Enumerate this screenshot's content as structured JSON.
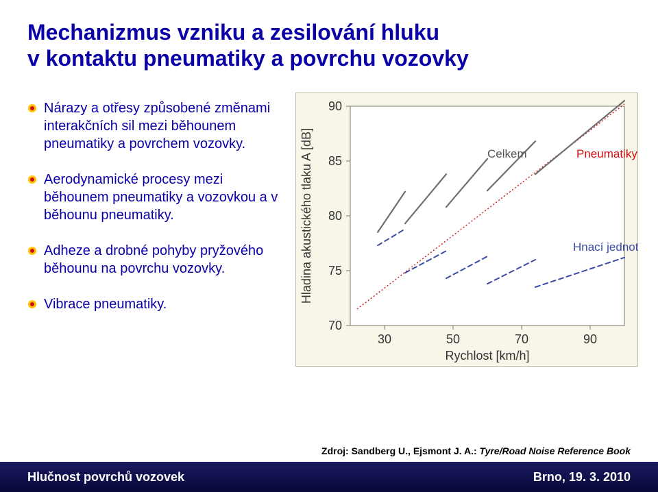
{
  "title_line1": "Mechanizmus vzniku a zesilování hluku",
  "title_line2": "v kontaktu pneumatiky a povrchu vozovky",
  "bullets": [
    "Nárazy a otřesy způsobené změnami interakčních sil  mezi běhounem pneumatiky a povrchem vozovky.",
    "Aerodynamické procesy mezi běhounem pneumatiky a vozovkou a v běhounu pneumatiky.",
    "Adheze a drobné pohyby pryžového běhounu na povrchu vozovky.",
    "Vibrace pneumatiky."
  ],
  "bullet_dot_outer": "#ffc400",
  "bullet_dot_inner": "#d01010",
  "chart": {
    "type": "line",
    "bg_color": "#f7f6e8",
    "plot_bg": "#ffffff",
    "border_color": "#7a7865",
    "y_label": "Hladina akustického tlaku A [dB]",
    "x_label": "Rychlost [km/h]",
    "y_ticks": [
      70,
      75,
      80,
      85,
      90
    ],
    "x_ticks": [
      30,
      50,
      70,
      90
    ],
    "ylim": [
      70,
      90
    ],
    "xlim": [
      20,
      100
    ],
    "tick_fontsize": 18,
    "label_fontsize": 18,
    "series": {
      "celkem": {
        "label": "Celkem",
        "color": "#6f6f6f",
        "width": 2.2,
        "dash": "none",
        "segments": [
          [
            [
              28,
              78.5
            ],
            [
              36,
              82.2
            ]
          ],
          [
            [
              36,
              79.3
            ],
            [
              48,
              83.8
            ]
          ],
          [
            [
              48,
              80.8
            ],
            [
              60,
              85.2
            ]
          ],
          [
            [
              60,
              82.3
            ],
            [
              74,
              86.8
            ]
          ],
          [
            [
              74,
              83.8
            ],
            [
              100,
              90.5
            ]
          ]
        ]
      },
      "pneumatiky": {
        "label": "Pneumatiky",
        "color": "#d01010",
        "width": 1.4,
        "dash": "2 3",
        "points": [
          [
            22,
            71.5
          ],
          [
            100,
            90.2
          ]
        ]
      },
      "hnaci": {
        "label": "Hnací jednotka",
        "color": "#3a4aa8",
        "width": 2,
        "dash": "7 5",
        "segments": [
          [
            [
              28,
              77.3
            ],
            [
              36,
              78.8
            ]
          ],
          [
            [
              36,
              74.8
            ],
            [
              48,
              76.8
            ]
          ],
          [
            [
              48,
              74.3
            ],
            [
              60,
              76.3
            ]
          ],
          [
            [
              60,
              73.8
            ],
            [
              74,
              76
            ]
          ],
          [
            [
              74,
              73.5
            ],
            [
              100,
              76.2
            ]
          ]
        ]
      }
    },
    "legend": {
      "celkem_pos": [
        60,
        85.3
      ],
      "pneu_pos": [
        86,
        85.3
      ],
      "hnaci_pos": [
        85,
        76.8
      ]
    }
  },
  "source_prefix": "Zdroj: Sandberg U., Ejsmont J. A.: ",
  "source_title": "Tyre/Road Noise Reference Book",
  "footer_left": "Hlučnost povrchů vozovek",
  "footer_right": "Brno, 19. 3. 2010"
}
